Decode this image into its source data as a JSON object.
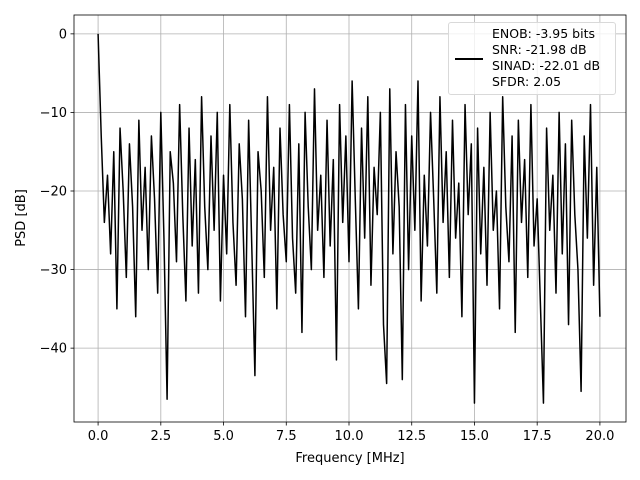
{
  "chart_data": {
    "type": "line",
    "x_label": "Frequency [MHz]",
    "y_label": "PSD [dB]",
    "x": [
      0,
      0.125,
      0.25,
      0.375,
      0.5,
      0.625,
      0.75,
      0.875,
      1,
      1.125,
      1.25,
      1.375,
      1.5,
      1.625,
      1.75,
      1.875,
      2,
      2.125,
      2.25,
      2.375,
      2.5,
      2.625,
      2.75,
      2.875,
      3,
      3.125,
      3.25,
      3.375,
      3.5,
      3.625,
      3.75,
      3.875,
      4,
      4.125,
      4.25,
      4.375,
      4.5,
      4.625,
      4.75,
      4.875,
      5,
      5.125,
      5.25,
      5.375,
      5.5,
      5.625,
      5.75,
      5.875,
      6,
      6.125,
      6.25,
      6.375,
      6.5,
      6.625,
      6.75,
      6.875,
      7,
      7.125,
      7.25,
      7.375,
      7.5,
      7.625,
      7.75,
      7.875,
      8,
      8.125,
      8.25,
      8.375,
      8.5,
      8.625,
      8.75,
      8.875,
      9,
      9.125,
      9.25,
      9.375,
      9.5,
      9.625,
      9.75,
      9.875,
      10,
      10.125,
      10.25,
      10.375,
      10.5,
      10.625,
      10.75,
      10.875,
      11,
      11.125,
      11.25,
      11.375,
      11.5,
      11.625,
      11.75,
      11.875,
      12,
      12.125,
      12.25,
      12.375,
      12.5,
      12.625,
      12.75,
      12.875,
      13,
      13.125,
      13.25,
      13.375,
      13.5,
      13.625,
      13.75,
      13.875,
      14,
      14.125,
      14.25,
      14.375,
      14.5,
      14.625,
      14.75,
      14.875,
      15,
      15.125,
      15.25,
      15.375,
      15.5,
      15.625,
      15.75,
      15.875,
      16,
      16.125,
      16.25,
      16.375,
      16.5,
      16.625,
      16.75,
      16.875,
      17,
      17.125,
      17.25,
      17.375,
      17.5,
      17.625,
      17.75,
      17.875,
      18,
      18.125,
      18.25,
      18.375,
      18.5,
      18.625,
      18.75,
      18.875,
      19,
      19.125,
      19.25,
      19.375,
      19.5,
      19.625,
      19.75,
      19.875,
      20
    ],
    "series": [
      {
        "name": "ENOB: -3.95 bits\nSNR: -21.98 dB\nSINAD: -22.01 dB\nSFDR: 2.05",
        "color": "#000000",
        "values": [
          0,
          -13,
          -24,
          -18,
          -28,
          -15,
          -35,
          -12,
          -20,
          -31,
          -14,
          -22,
          -36,
          -11,
          -25,
          -17,
          -30,
          -13,
          -21,
          -33,
          -10,
          -26,
          -46.5,
          -15,
          -19,
          -29,
          -9,
          -23,
          -34,
          -12,
          -27,
          -16,
          -33,
          -8,
          -22,
          -30,
          -13,
          -25,
          -10,
          -34,
          -18,
          -28,
          -9,
          -24,
          -32,
          -14,
          -21,
          -36,
          -11,
          -27,
          -43.5,
          -15,
          -20,
          -31,
          -8,
          -25,
          -17,
          -35,
          -12,
          -23,
          -29,
          -9,
          -26,
          -33,
          -14,
          -38,
          -10,
          -22,
          -30,
          -7,
          -25,
          -18,
          -31,
          -11,
          -27,
          -16,
          -41.5,
          -9,
          -24,
          -13,
          -29,
          -6,
          -21,
          -35,
          -12,
          -26,
          -8,
          -32,
          -17,
          -23,
          -10,
          -37,
          -44.5,
          -7,
          -28,
          -15,
          -22,
          -44,
          -9,
          -30,
          -13,
          -25,
          -6,
          -34,
          -18,
          -27,
          -10,
          -21,
          -33,
          -8,
          -24,
          -15,
          -31,
          -11,
          -26,
          -19,
          -36,
          -9,
          -23,
          -14,
          -47,
          -12,
          -28,
          -17,
          -32,
          -10,
          -25,
          -20,
          -35,
          -8,
          -22,
          -29,
          -13,
          -38,
          -11,
          -24,
          -16,
          -31,
          -9,
          -27,
          -21,
          -34,
          -47,
          -12,
          -25,
          -18,
          -33,
          -10,
          -28,
          -14,
          -37,
          -11,
          -23,
          -30,
          -45.5,
          -13,
          -26,
          -9,
          -32,
          -17,
          -36
        ]
      }
    ],
    "xlim": [
      -0.96,
      21.04
    ],
    "ylim": [
      -49.4,
      2.4
    ],
    "xticks": [
      {
        "value": 0,
        "label": "0.0"
      },
      2.5,
      {
        "value": 5,
        "label": "5.0"
      },
      7.5,
      {
        "value": 10,
        "label": "10.0"
      },
      12.5,
      {
        "value": 15,
        "label": "15.0"
      },
      17.5,
      {
        "value": 20,
        "label": "20.0"
      }
    ],
    "yticks": [
      {
        "value": -40,
        "label": "−40"
      },
      {
        "value": -30,
        "label": "−30"
      },
      {
        "value": -20,
        "label": "−20"
      },
      {
        "value": -10,
        "label": "−10"
      },
      0
    ],
    "grid": true,
    "legend_position": "upper right"
  }
}
